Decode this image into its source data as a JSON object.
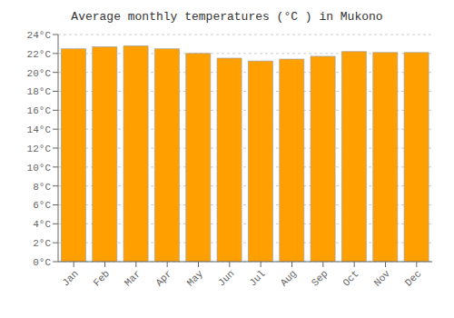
{
  "chart_data": {
    "type": "bar",
    "title": "Average monthly temperatures (°C ) in Mukono",
    "categories": [
      "Jan",
      "Feb",
      "Mar",
      "Apr",
      "May",
      "Jun",
      "Jul",
      "Aug",
      "Sep",
      "Oct",
      "Nov",
      "Dec"
    ],
    "values": [
      22.5,
      22.7,
      22.8,
      22.5,
      22.0,
      21.5,
      21.2,
      21.4,
      21.7,
      22.2,
      22.1,
      22.1
    ],
    "color": "#FFA000",
    "ylim": [
      0,
      24
    ],
    "yticks": [
      {
        "value": 0,
        "label": "0°C"
      },
      {
        "value": 2,
        "label": "2°C"
      },
      {
        "value": 4,
        "label": "4°C"
      },
      {
        "value": 6,
        "label": "6°C"
      },
      {
        "value": 8,
        "label": "8°C"
      },
      {
        "value": 10,
        "label": "10°C"
      },
      {
        "value": 12,
        "label": "12°C"
      },
      {
        "value": 14,
        "label": "14°C"
      },
      {
        "value": 16,
        "label": "16°C"
      },
      {
        "value": 18,
        "label": "18°C"
      },
      {
        "value": 20,
        "label": "20°C"
      },
      {
        "value": 22,
        "label": "22°C"
      },
      {
        "value": 24,
        "label": "24°C"
      }
    ],
    "grid": true
  }
}
